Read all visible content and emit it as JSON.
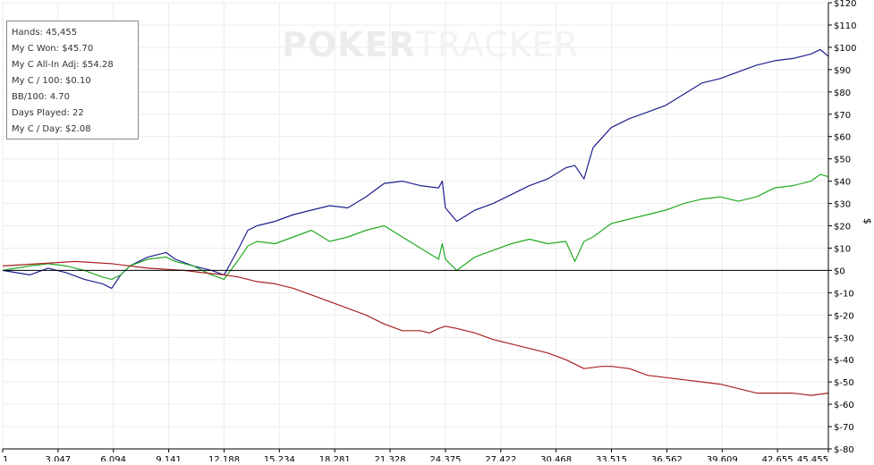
{
  "watermark": {
    "brand_a": "POKER",
    "brand_b": "TRACKER"
  },
  "stats": [
    "Hands: 45,455",
    "My C Won: $45.70",
    "My C All-In Adj: $54.28",
    "My C / 100: $0.10",
    "BB/100: 4.70",
    "Days Played: 22",
    "My C / Day: $2.08"
  ],
  "colors": {
    "series_blue": "#1f1f8f",
    "series_green": "#22aa22",
    "series_red": "#aa2222",
    "grid": "#ececec",
    "axis": "#000000"
  },
  "chart_data": {
    "type": "line",
    "title": "",
    "xlabel": "",
    "ylabel": "$",
    "xlim": [
      1,
      45455
    ],
    "ylim": [
      -80,
      120
    ],
    "grid": true,
    "x_ticks": [
      "1",
      "3,047",
      "6,094",
      "9,141",
      "12,188",
      "15,234",
      "18,281",
      "21,328",
      "24,375",
      "27,422",
      "30,468",
      "33,515",
      "36,562",
      "39,609",
      "42,655",
      "45,455"
    ],
    "x_tick_values": [
      1,
      3047,
      6094,
      9141,
      12188,
      15234,
      18281,
      21328,
      24375,
      27422,
      30468,
      33515,
      36562,
      39609,
      42655,
      45455
    ],
    "y_ticks": [
      "$120",
      "$110",
      "$100",
      "$90",
      "$80",
      "$70",
      "$60",
      "$50",
      "$40",
      "$30",
      "$20",
      "$10",
      "$0",
      "$-10",
      "$-20",
      "$-30",
      "$-40",
      "$-50",
      "$-60",
      "$-70",
      "$-80"
    ],
    "y_tick_values": [
      120,
      110,
      100,
      90,
      80,
      70,
      60,
      50,
      40,
      30,
      20,
      10,
      0,
      -10,
      -20,
      -30,
      -40,
      -50,
      -60,
      -70,
      -80
    ],
    "series": [
      {
        "color": "#1f1f8f",
        "x": [
          1,
          1500,
          2500,
          3500,
          4500,
          5500,
          6000,
          6500,
          7000,
          8000,
          9000,
          9500,
          10500,
          11500,
          12188,
          13000,
          13500,
          14000,
          15000,
          16000,
          17000,
          18000,
          19000,
          20000,
          21000,
          22000,
          23000,
          24000,
          24200,
          24375,
          25000,
          26000,
          27000,
          28000,
          29000,
          30000,
          31000,
          31500,
          32000,
          32500,
          33500,
          34500,
          35500,
          36500,
          37500,
          38500,
          39500,
          40500,
          41500,
          42500,
          43500,
          44500,
          45000,
          45455
        ],
        "y": [
          0,
          -2,
          1,
          -1,
          -4,
          -6,
          -8,
          -2,
          2,
          6,
          8,
          5,
          2,
          0,
          -2,
          10,
          18,
          20,
          22,
          25,
          27,
          29,
          28,
          33,
          39,
          40,
          38,
          37,
          40,
          28,
          22,
          27,
          30,
          34,
          38,
          41,
          46,
          47,
          41,
          55,
          64,
          68,
          71,
          74,
          79,
          84,
          86,
          89,
          92,
          94,
          95,
          97,
          99,
          96
        ]
      },
      {
        "color": "#22aa22",
        "x": [
          1,
          1500,
          2500,
          3500,
          4500,
          5500,
          6000,
          6500,
          7000,
          8000,
          9000,
          9500,
          10500,
          11500,
          12188,
          13000,
          13500,
          14000,
          15000,
          16000,
          17000,
          18000,
          19000,
          20000,
          21000,
          22000,
          23000,
          24000,
          24200,
          24375,
          25000,
          26000,
          27000,
          28000,
          29000,
          30000,
          31000,
          31500,
          32000,
          32500,
          33500,
          34500,
          35500,
          36500,
          37500,
          38500,
          39500,
          40500,
          41500,
          42500,
          43500,
          44500,
          45000,
          45455
        ],
        "y": [
          0,
          2,
          3,
          2,
          0,
          -3,
          -4,
          -2,
          2,
          5,
          6,
          4,
          2,
          -2,
          -4,
          5,
          11,
          13,
          12,
          15,
          18,
          13,
          15,
          18,
          20,
          15,
          10,
          5,
          12,
          5,
          0,
          6,
          9,
          12,
          14,
          12,
          13,
          4,
          13,
          15,
          21,
          23,
          25,
          27,
          30,
          32,
          33,
          31,
          33,
          37,
          38,
          40,
          43,
          42
        ]
      },
      {
        "color": "#aa2222",
        "x": [
          1,
          2000,
          4000,
          6000,
          8000,
          10000,
          11000,
          12188,
          13000,
          14000,
          15000,
          16000,
          17000,
          18000,
          19000,
          20000,
          21000,
          22000,
          23000,
          23500,
          24000,
          24375,
          25000,
          26000,
          27000,
          28000,
          29000,
          30000,
          31000,
          32000,
          33000,
          33500,
          34500,
          35500,
          36500,
          37500,
          38500,
          39500,
          40500,
          41500,
          42500,
          43500,
          44500,
          45455
        ],
        "y": [
          2,
          3,
          4,
          3,
          1,
          0,
          -1,
          -2,
          -3,
          -5,
          -6,
          -8,
          -11,
          -14,
          -17,
          -20,
          -24,
          -27,
          -27,
          -28,
          -26,
          -25,
          -26,
          -28,
          -31,
          -33,
          -35,
          -37,
          -40,
          -44,
          -43,
          -43,
          -44,
          -47,
          -48,
          -49,
          -50,
          -51,
          -53,
          -55,
          -55,
          -55,
          -56,
          -55
        ]
      }
    ]
  }
}
